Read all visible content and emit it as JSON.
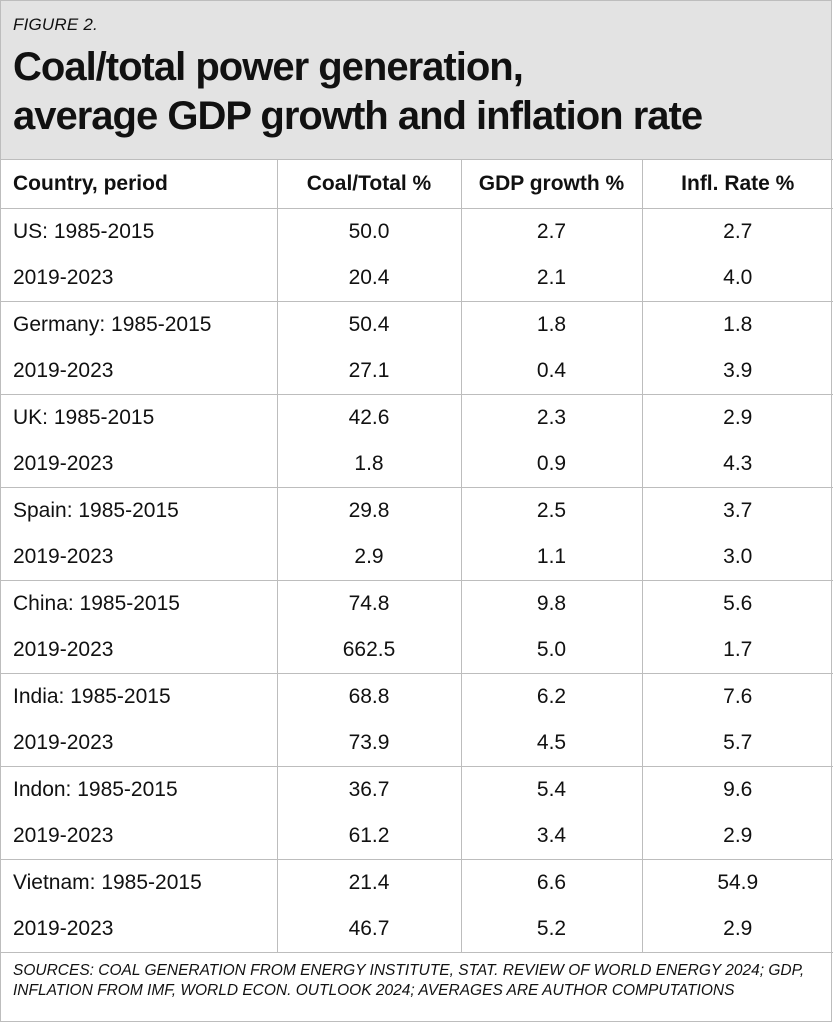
{
  "figure_label": "FIGURE 2.",
  "title_line1": "Coal/total power generation,",
  "title_line2": "average GDP growth and inflation rate",
  "chart_data": {
    "type": "table",
    "title": "Coal/total power generation, average GDP growth and inflation rate",
    "columns": [
      "Country, period",
      "Coal/Total %",
      "GDP growth %",
      "Infl. Rate %"
    ],
    "rows": [
      [
        "US: 1985-2015",
        "50.0",
        "2.7",
        "2.7"
      ],
      [
        "2019-2023",
        "20.4",
        "2.1",
        "4.0"
      ],
      [
        "Germany: 1985-2015",
        "50.4",
        "1.8",
        "1.8"
      ],
      [
        "2019-2023",
        "27.1",
        "0.4",
        "3.9"
      ],
      [
        "UK: 1985-2015",
        "42.6",
        "2.3",
        "2.9"
      ],
      [
        "2019-2023",
        "1.8",
        "0.9",
        "4.3"
      ],
      [
        "Spain: 1985-2015",
        "29.8",
        "2.5",
        "3.7"
      ],
      [
        "2019-2023",
        "2.9",
        "1.1",
        "3.0"
      ],
      [
        "China: 1985-2015",
        "74.8",
        "9.8",
        "5.6"
      ],
      [
        "2019-2023",
        "662.5",
        "5.0",
        "1.7"
      ],
      [
        "India: 1985-2015",
        "68.8",
        "6.2",
        "7.6"
      ],
      [
        "2019-2023",
        "73.9",
        "4.5",
        "5.7"
      ],
      [
        "Indon: 1985-2015",
        "36.7",
        "5.4",
        "9.6"
      ],
      [
        "2019-2023",
        "61.2",
        "3.4",
        "2.9"
      ],
      [
        "Vietnam: 1985-2015",
        "21.4",
        "6.6",
        "54.9"
      ],
      [
        "2019-2023",
        "46.7",
        "5.2",
        "2.9"
      ]
    ]
  },
  "sources_line1": "SOURCES: COAL GENERATION FROM ENERGY INSTITUTE, STAT. REVIEW OF WORLD ENERGY 2024; GDP,",
  "sources_line2": "INFLATION FROM IMF, WORLD ECON. OUTLOOK 2024; AVERAGES ARE AUTHOR COMPUTATIONS",
  "colors": {
    "header_bg": "#e3e3e3",
    "border": "#bdbdbd",
    "text": "#111111"
  }
}
